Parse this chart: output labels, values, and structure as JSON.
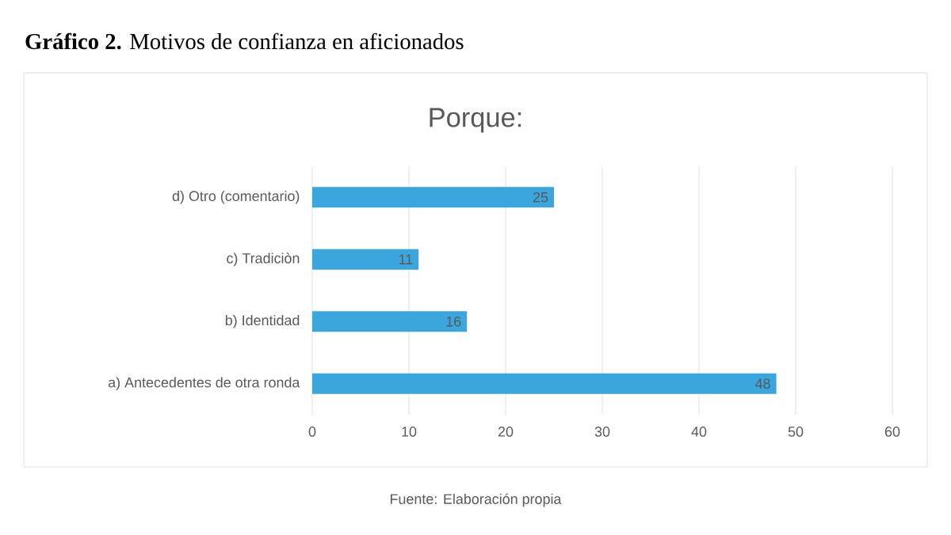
{
  "chart_data": {
    "type": "bar",
    "orientation": "horizontal",
    "title": "**Gráfico 2.** Motivos de confianza en aficionados",
    "subtitle": "Porque:",
    "categories": [
      "d) Otro (comentario)",
      "c) Tradiciòn",
      "b) Identidad",
      "a) Antecedentes de otra ronda"
    ],
    "values": [
      25,
      11,
      16,
      48
    ],
    "color": "#3aa6dd",
    "data_labels": true,
    "xlim": [
      0,
      60
    ],
    "xticks": [
      0,
      10,
      20,
      30,
      40,
      50,
      60
    ],
    "grid": "x",
    "annotations": [
      "Fuente: Elaboración propia"
    ]
  }
}
